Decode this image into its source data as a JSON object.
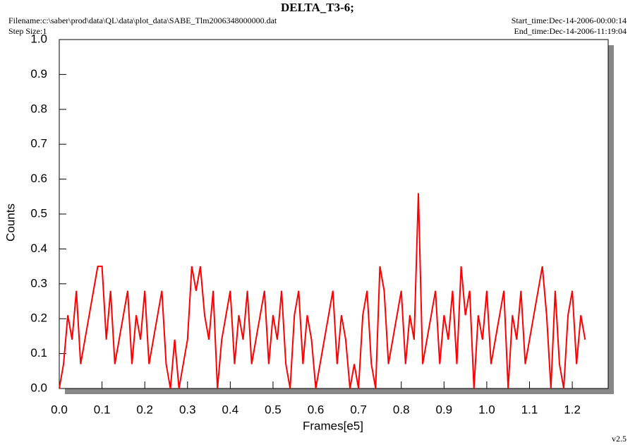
{
  "chart_data": {
    "type": "line",
    "title": "DELTA_T3-6;",
    "filename": "Filename:c:\\saber\\prod\\data\\QL\\data\\plot_data\\SABE_Tlm2006348000000.dat",
    "step_size": "Step Size:1",
    "start_time": "Start_time:Dec-14-2006-00:00:14",
    "end_time": "End_time:Dec-14-2006-11:19:04",
    "version": "v2.5",
    "x_label": "Frames[e5]",
    "y_label": "Counts",
    "xlim": [
      0,
      1.284
    ],
    "ylim": [
      0,
      1
    ],
    "xticks": [
      {
        "value": 0,
        "label": "0.0"
      },
      0.1,
      0.2,
      0.3,
      0.4,
      0.5,
      0.6,
      0.7,
      0.8,
      0.9,
      {
        "value": 1,
        "label": "1.0"
      },
      1.1,
      1.2
    ],
    "yticks": [
      {
        "value": 0,
        "label": "0.0"
      },
      0.1,
      0.2,
      0.3,
      0.4,
      0.5,
      0.6,
      0.7,
      0.8,
      0.9,
      {
        "value": 1,
        "label": "1.0"
      }
    ],
    "x": [
      0,
      0.01,
      0.02,
      0.03,
      0.04,
      0.05,
      0.06,
      0.07,
      0.08,
      0.09,
      0.1,
      0.11,
      0.12,
      0.13,
      0.14,
      0.15,
      0.16,
      0.17,
      0.18,
      0.19,
      0.2,
      0.21,
      0.22,
      0.23,
      0.24,
      0.25,
      0.26,
      0.27,
      0.28,
      0.29,
      0.3,
      0.31,
      0.32,
      0.33,
      0.34,
      0.35,
      0.36,
      0.37,
      0.38,
      0.39,
      0.4,
      0.41,
      0.42,
      0.43,
      0.44,
      0.45,
      0.46,
      0.47,
      0.48,
      0.49,
      0.5,
      0.51,
      0.52,
      0.53,
      0.54,
      0.55,
      0.56,
      0.57,
      0.58,
      0.59,
      0.6,
      0.61,
      0.62,
      0.63,
      0.64,
      0.65,
      0.66,
      0.67,
      0.68,
      0.69,
      0.7,
      0.71,
      0.72,
      0.73,
      0.74,
      0.75,
      0.76,
      0.77,
      0.78,
      0.79,
      0.8,
      0.81,
      0.82,
      0.83,
      0.84,
      0.85,
      0.86,
      0.87,
      0.88,
      0.89,
      0.9,
      0.91,
      0.92,
      0.93,
      0.94,
      0.95,
      0.96,
      0.97,
      0.98,
      0.99,
      1,
      1.01,
      1.02,
      1.03,
      1.04,
      1.05,
      1.06,
      1.07,
      1.08,
      1.09,
      1.1,
      1.11,
      1.12,
      1.13,
      1.14,
      1.15,
      1.16,
      1.17,
      1.18,
      1.19,
      1.2,
      1.21,
      1.22,
      1.23
    ],
    "series": [
      {
        "color": "#ff0000",
        "values": [
          0,
          0.07,
          0.21,
          0.14,
          0.28,
          0.07,
          0.14,
          0.21,
          0.28,
          0.35,
          0.35,
          0.14,
          0.28,
          0.07,
          0.14,
          0.21,
          0.28,
          0.07,
          0.21,
          0.14,
          0.28,
          0.07,
          0.14,
          0.21,
          0.28,
          0.07,
          0,
          0.14,
          0,
          0.07,
          0.14,
          0.35,
          0.28,
          0.35,
          0.21,
          0.14,
          0.28,
          0,
          0.14,
          0.21,
          0.28,
          0.07,
          0.21,
          0.14,
          0.28,
          0.07,
          0.14,
          0.21,
          0.28,
          0.07,
          0.21,
          0.14,
          0.28,
          0.07,
          0,
          0.21,
          0.28,
          0.07,
          0.21,
          0.14,
          0,
          0.07,
          0.14,
          0.21,
          0.28,
          0.07,
          0.21,
          0.14,
          0,
          0.07,
          0,
          0.21,
          0.28,
          0.07,
          0,
          0.35,
          0.28,
          0.07,
          0.14,
          0.21,
          0.28,
          0.07,
          0.21,
          0.14,
          0.56,
          0.07,
          0.14,
          0.21,
          0.28,
          0.07,
          0.21,
          0.14,
          0.28,
          0.07,
          0.35,
          0.21,
          0.28,
          0,
          0.21,
          0.14,
          0.28,
          0.07,
          0.14,
          0.21,
          0.28,
          0,
          0.21,
          0.14,
          0.28,
          0.07,
          0.14,
          0.21,
          0.28,
          0.35,
          0.21,
          0,
          0.28,
          0.07,
          0,
          0.21,
          0.28,
          0.07,
          0.21,
          0.14
        ]
      }
    ]
  }
}
